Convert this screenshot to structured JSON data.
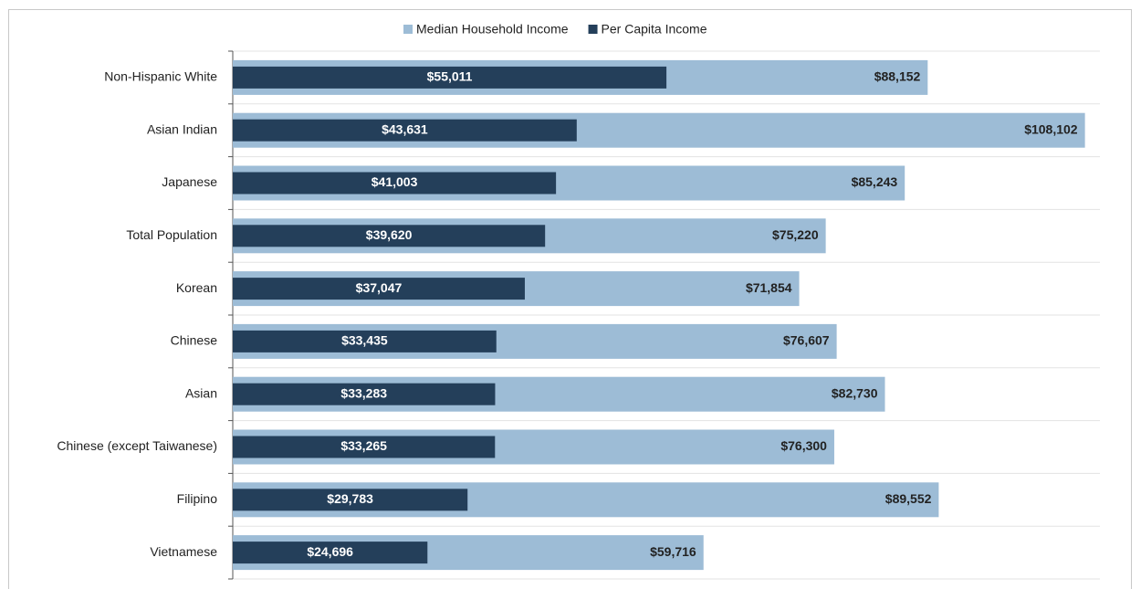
{
  "chart_data": {
    "type": "bar",
    "orientation": "horizontal",
    "categories": [
      "Non-Hispanic White",
      "Asian Indian",
      "Japanese",
      "Total Population",
      "Korean",
      "Chinese",
      "Asian",
      "Chinese (except Taiwanese)",
      "Filipino",
      "Vietnamese"
    ],
    "series": [
      {
        "name": "Median Household Income",
        "color": "#9dbcd6",
        "values": [
          88152,
          108102,
          85243,
          75220,
          71854,
          76607,
          82730,
          76300,
          89552,
          59716
        ],
        "value_labels": [
          "$88,152",
          "$108,102",
          "$85,243",
          "$75,220",
          "$71,854",
          "$76,607",
          "$82,730",
          "$76,300",
          "$89,552",
          "$59,716"
        ]
      },
      {
        "name": "Per Capita Income",
        "color": "#243f5a",
        "values": [
          55011,
          43631,
          41003,
          39620,
          37047,
          33435,
          33283,
          33265,
          29783,
          24696
        ],
        "value_labels": [
          "$55,011",
          "$43,631",
          "$41,003",
          "$39,620",
          "$37,047",
          "$33,435",
          "$33,283",
          "$33,265",
          "$29,783",
          "$24,696"
        ]
      }
    ],
    "xlim": [
      0,
      110000
    ],
    "legend": "top"
  }
}
